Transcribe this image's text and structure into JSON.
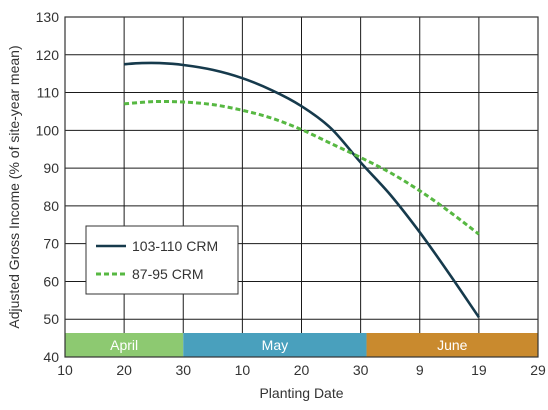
{
  "chart_data": {
    "type": "line",
    "xlabel": "Planting Date",
    "ylabel": "Adjusted Gross Income (% of site-year mean)",
    "ylim": [
      40,
      130
    ],
    "yticks": [
      40,
      50,
      60,
      70,
      80,
      90,
      100,
      110,
      120,
      130
    ],
    "xlim": [
      0,
      80
    ],
    "xticks": [
      {
        "x": 0,
        "label": "10"
      },
      {
        "x": 10,
        "label": "20"
      },
      {
        "x": 20,
        "label": "30"
      },
      {
        "x": 30,
        "label": "10"
      },
      {
        "x": 40,
        "label": "20"
      },
      {
        "x": 50,
        "label": "30"
      },
      {
        "x": 60,
        "label": "9"
      },
      {
        "x": 70,
        "label": "19"
      },
      {
        "x": 80,
        "label": "29"
      }
    ],
    "month_bands": [
      {
        "label": "April",
        "from": 0,
        "to": 20,
        "color": "#8dc971"
      },
      {
        "label": "May",
        "from": 20,
        "to": 51,
        "color": "#49a0bd"
      },
      {
        "label": "June",
        "from": 51,
        "to": 80,
        "color": "#c98a2e"
      }
    ],
    "grid": true,
    "legend_position": "lower-left",
    "series": [
      {
        "name": "103-110 CRM",
        "color": "#163a4c",
        "style": "solid",
        "x": [
          10,
          13,
          16,
          20,
          25,
          30,
          35,
          40,
          45,
          50,
          55,
          60,
          65,
          70
        ],
        "y": [
          117.5,
          117.8,
          117.8,
          117.3,
          116,
          113.8,
          110.6,
          106.4,
          100.5,
          91.5,
          83,
          73,
          62,
          50.5
        ]
      },
      {
        "name": "87-95 CRM",
        "color": "#57b842",
        "style": "dashed",
        "x": [
          10,
          15,
          20,
          25,
          30,
          35,
          40,
          45,
          50,
          55,
          60,
          65,
          70
        ],
        "y": [
          107,
          107.6,
          107.5,
          106.8,
          105.3,
          103.2,
          100.2,
          96.5,
          92.8,
          88.8,
          84,
          78.5,
          72.5
        ]
      }
    ]
  }
}
